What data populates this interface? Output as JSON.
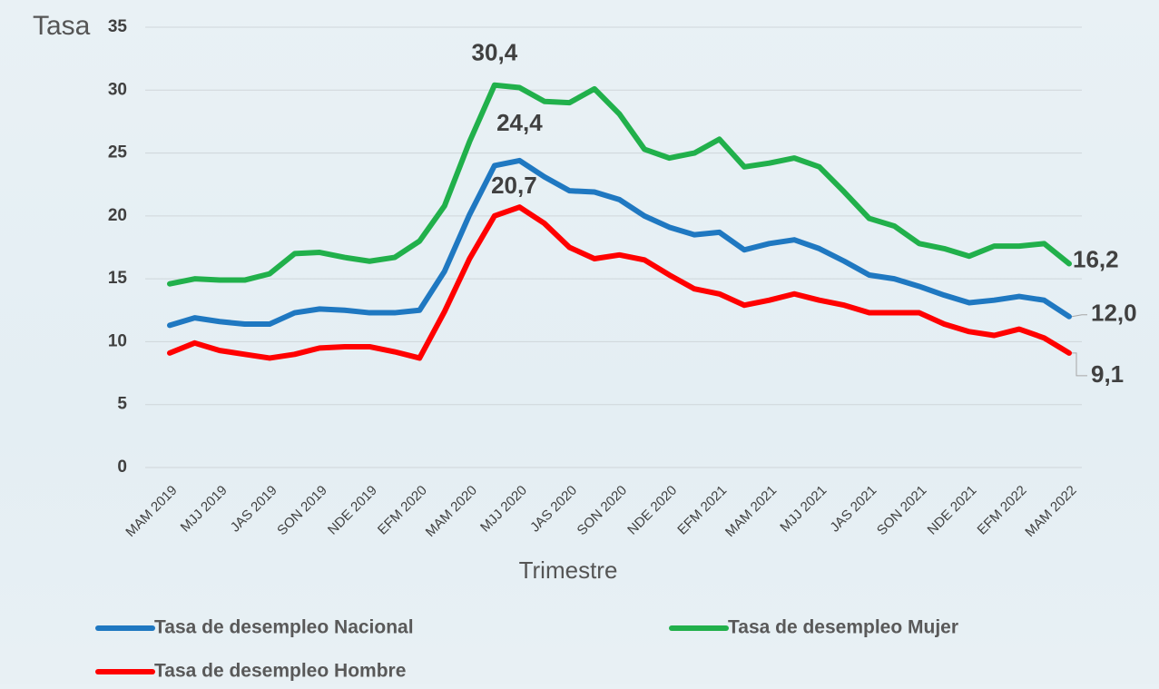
{
  "chart_data": {
    "type": "line",
    "y_axis_label": "Tasa",
    "x_axis_label": "Trimestre",
    "categories": [
      "MAM 2019",
      null,
      "MJJ 2019",
      null,
      "JAS 2019",
      null,
      "SON 2019",
      null,
      "NDE 2019",
      null,
      "EFM 2020",
      null,
      "MAM 2020",
      null,
      "MJJ 2020",
      null,
      "JAS 2020",
      null,
      "SON 2020",
      null,
      "NDE 2020",
      null,
      "EFM 2021",
      null,
      "MAM 2021",
      null,
      "MJJ 2021",
      null,
      "JAS 2021",
      null,
      "SON 2021",
      null,
      "NDE 2021",
      null,
      "EFM 2022",
      null,
      "MAM 2022"
    ],
    "ylim": [
      0,
      35
    ],
    "yticks": [
      0,
      5,
      10,
      15,
      20,
      25,
      30,
      35
    ],
    "grid": true,
    "legend": "bottom",
    "series": [
      {
        "name": "Tasa de desempleo Nacional",
        "color": "#1f78c1",
        "values": [
          11.3,
          11.9,
          11.6,
          11.4,
          11.4,
          12.3,
          12.6,
          12.5,
          12.3,
          12.3,
          12.5,
          15.6,
          20.1,
          24.0,
          24.4,
          23.1,
          22.0,
          21.9,
          21.3,
          20.0,
          19.1,
          18.5,
          18.7,
          17.3,
          17.8,
          18.1,
          17.4,
          16.4,
          15.3,
          15.0,
          14.4,
          13.7,
          13.1,
          13.3,
          13.6,
          13.3,
          12.0
        ],
        "value_labels": [
          null,
          null,
          null,
          null,
          null,
          null,
          null,
          null,
          null,
          null,
          null,
          null,
          null,
          null,
          "24,4",
          null,
          null,
          null,
          null,
          null,
          null,
          null,
          null,
          null,
          null,
          null,
          null,
          null,
          null,
          null,
          null,
          null,
          null,
          null,
          null,
          null,
          "12,0"
        ]
      },
      {
        "name": "Tasa de desempleo Mujer",
        "color": "#21b04b",
        "values": [
          14.6,
          15.0,
          14.9,
          14.9,
          15.4,
          17.0,
          17.1,
          16.7,
          16.4,
          16.7,
          18.0,
          20.8,
          25.9,
          30.4,
          30.2,
          29.1,
          29.0,
          30.1,
          28.1,
          25.3,
          24.6,
          25.0,
          26.1,
          23.9,
          24.2,
          24.6,
          23.9,
          21.9,
          19.8,
          19.2,
          17.8,
          17.4,
          16.8,
          17.6,
          17.6,
          17.8,
          16.2
        ],
        "value_labels": [
          null,
          null,
          null,
          null,
          null,
          null,
          null,
          null,
          null,
          null,
          null,
          null,
          null,
          "30,4",
          null,
          null,
          null,
          null,
          null,
          null,
          null,
          null,
          null,
          null,
          null,
          null,
          null,
          null,
          null,
          null,
          null,
          null,
          null,
          null,
          null,
          null,
          "16,2"
        ]
      },
      {
        "name": "Tasa de desempleo Hombre",
        "color": "#ff0000",
        "values": [
          9.1,
          9.9,
          9.3,
          9.0,
          8.7,
          9.0,
          9.5,
          9.6,
          9.6,
          9.2,
          8.7,
          12.4,
          16.6,
          20.0,
          20.7,
          19.4,
          17.5,
          16.6,
          16.9,
          16.5,
          15.3,
          14.2,
          13.8,
          12.9,
          13.3,
          13.8,
          13.3,
          12.9,
          12.3,
          12.3,
          12.3,
          11.4,
          10.8,
          10.5,
          11.0,
          10.3,
          9.1
        ],
        "value_labels": [
          null,
          null,
          null,
          null,
          null,
          null,
          null,
          null,
          null,
          null,
          null,
          null,
          null,
          null,
          "20,7",
          null,
          null,
          null,
          null,
          null,
          null,
          null,
          null,
          null,
          null,
          null,
          null,
          null,
          null,
          null,
          null,
          null,
          null,
          null,
          null,
          null,
          "9,1"
        ]
      }
    ]
  }
}
